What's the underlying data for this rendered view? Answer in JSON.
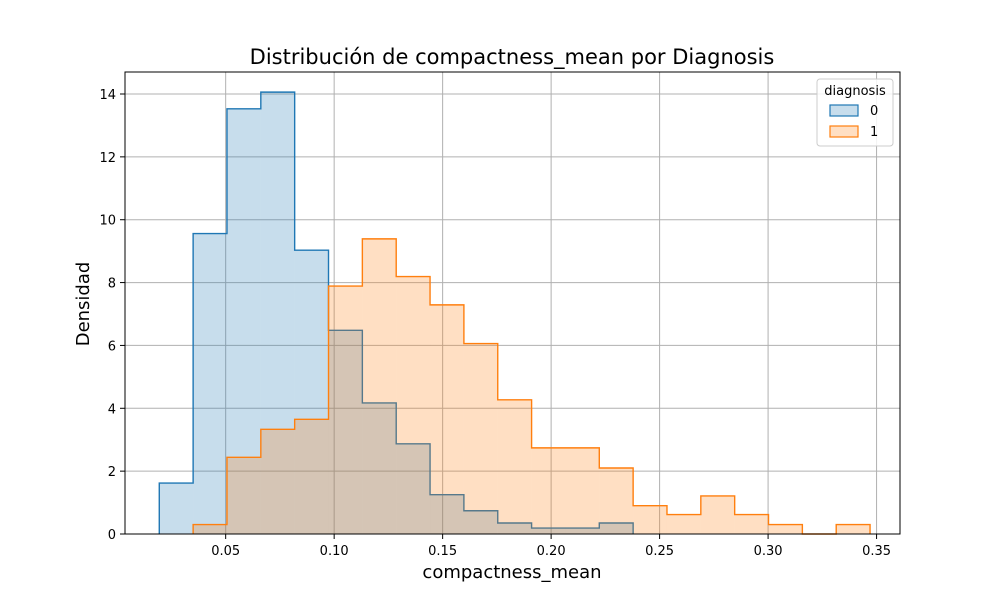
{
  "chart_data": {
    "type": "histogram",
    "title": "Distribución de compactness_mean por Diagnosis",
    "xlabel": "compactness_mean",
    "ylabel": "Densidad",
    "xlim": [
      0.0036,
      0.3608
    ],
    "ylim": [
      0,
      14.7
    ],
    "xticks": [
      0.05,
      0.1,
      0.15,
      0.2,
      0.25,
      0.3,
      0.35
    ],
    "xtick_labels": [
      "0.05",
      "0.10",
      "0.15",
      "0.20",
      "0.25",
      "0.30",
      "0.35"
    ],
    "yticks": [
      0,
      2,
      4,
      6,
      8,
      10,
      12,
      14
    ],
    "ytick_labels": [
      "0",
      "2",
      "4",
      "6",
      "8",
      "10",
      "12",
      "14"
    ],
    "grid": true,
    "legend": {
      "title": "diagnosis",
      "position": "top-right"
    },
    "bin_edges": [
      0.0194,
      0.035,
      0.0506,
      0.0662,
      0.0818,
      0.0974,
      0.113,
      0.1286,
      0.1442,
      0.1598,
      0.1754,
      0.191,
      0.2066,
      0.2222,
      0.2378,
      0.2534,
      0.269,
      0.2846,
      0.3002,
      0.3158,
      0.3314,
      0.347
    ],
    "series": [
      {
        "name": "0",
        "color": "#1f77b4",
        "fill": "#c6dbed",
        "values": [
          1.62,
          9.56,
          13.53,
          14.06,
          9.03,
          6.48,
          4.17,
          2.87,
          1.25,
          0.74,
          0.35,
          0.19,
          0.19,
          0.35,
          0,
          0,
          0,
          0,
          0,
          0,
          0
        ]
      },
      {
        "name": "1",
        "color": "#ff7f0e",
        "fill": "#ffd8b5",
        "values": [
          0,
          0.3,
          2.44,
          3.33,
          3.65,
          7.89,
          9.39,
          8.19,
          7.29,
          6.06,
          4.27,
          2.74,
          2.74,
          2.1,
          0.9,
          0.62,
          1.21,
          0.62,
          0.3,
          0,
          0.3
        ]
      }
    ]
  }
}
